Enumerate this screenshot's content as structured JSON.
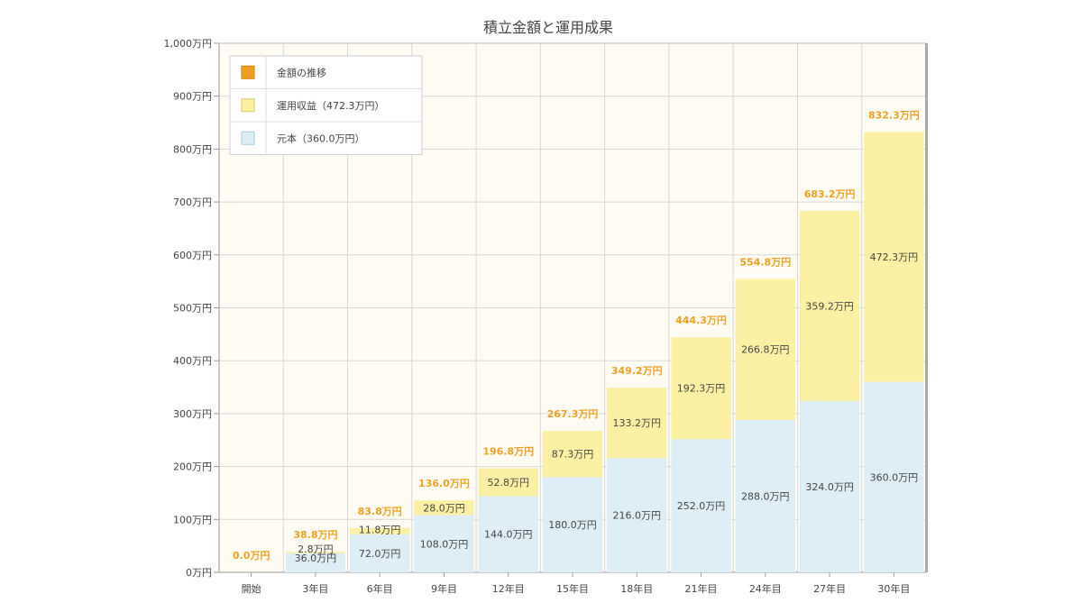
{
  "chart_data": {
    "type": "bar",
    "stacked": true,
    "title": "積立金額と運用成果",
    "categories": [
      "開始",
      "3年目",
      "6年目",
      "9年目",
      "12年目",
      "15年目",
      "18年目",
      "21年目",
      "24年目",
      "27年目",
      "30年目"
    ],
    "series": [
      {
        "name": "元本（360.0万円）",
        "color": "#ddeef6",
        "values": [
          0.0,
          36.0,
          72.0,
          108.0,
          144.0,
          180.0,
          216.0,
          252.0,
          288.0,
          324.0,
          360.0
        ],
        "labels": [
          "",
          "36.0万円",
          "72.0万円",
          "108.0万円",
          "144.0万円",
          "180.0万円",
          "216.0万円",
          "252.0万円",
          "288.0万円",
          "324.0万円",
          "360.0万円"
        ]
      },
      {
        "name": "運用収益（472.3万円）",
        "color": "#fcf0a4",
        "values": [
          0.0,
          2.8,
          11.8,
          28.0,
          52.8,
          87.3,
          133.2,
          192.3,
          266.8,
          359.2,
          472.3
        ],
        "labels": [
          "",
          "2.8万円",
          "11.8万円",
          "28.0万円",
          "52.8万円",
          "87.3万円",
          "133.2万円",
          "192.3万円",
          "266.8万円",
          "359.2万円",
          "472.3万円"
        ]
      }
    ],
    "totals": {
      "name": "金額の推移",
      "color": "#f0a020",
      "values": [
        0.0,
        38.8,
        83.8,
        136.0,
        196.8,
        267.3,
        349.2,
        444.3,
        554.8,
        683.2,
        832.3
      ],
      "labels": [
        "0.0万円",
        "38.8万円",
        "83.8万円",
        "136.0万円",
        "196.8万円",
        "267.3万円",
        "349.2万円",
        "444.3万円",
        "554.8万円",
        "683.2万円",
        "832.3万円"
      ]
    },
    "ylim": [
      0,
      1000
    ],
    "y_ticks": [
      "0万円",
      "100万円",
      "200万円",
      "300万円",
      "400万円",
      "500万円",
      "600万円",
      "700万円",
      "800万円",
      "900万円",
      "1,000万円"
    ],
    "grid": true,
    "legend_position": "top-left",
    "legend": [
      "金額の推移",
      "運用収益（472.3万円）",
      "元本（360.0万円）"
    ]
  }
}
